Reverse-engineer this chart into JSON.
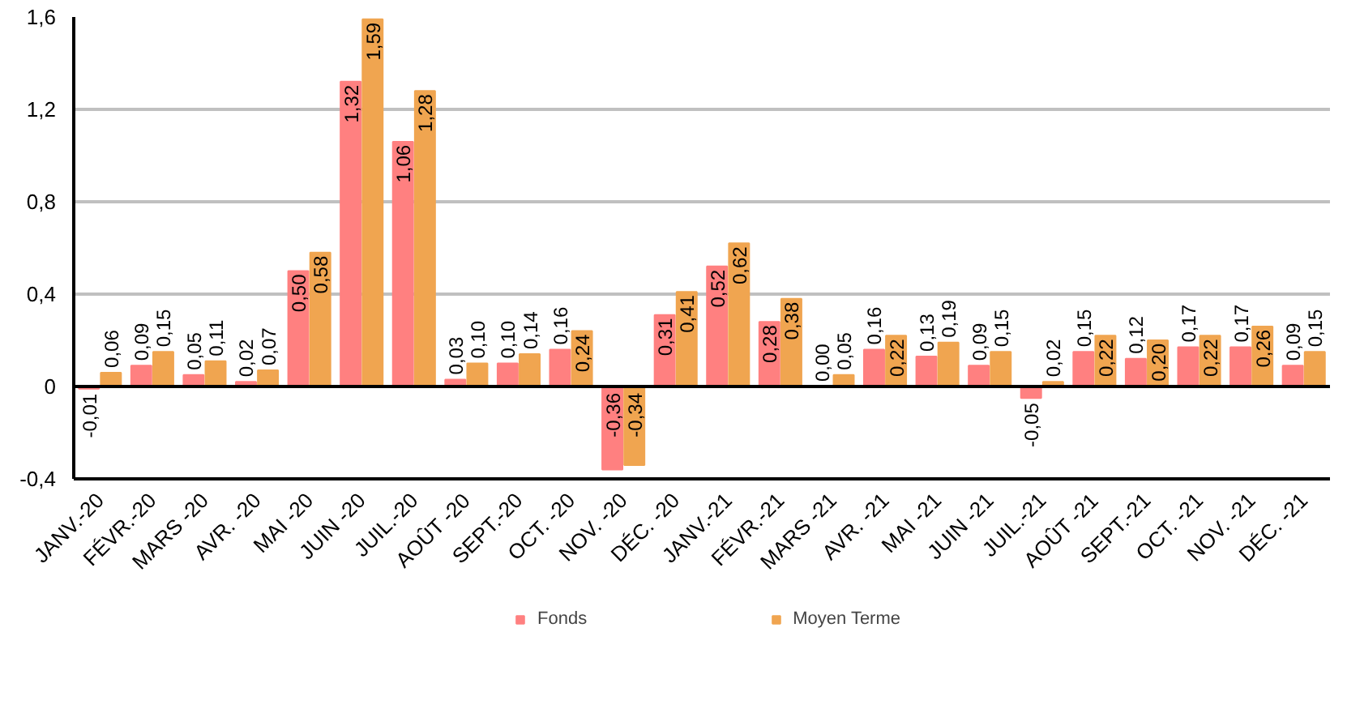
{
  "chart_data": {
    "type": "bar",
    "categories": [
      "JANV.-20",
      "FÉVR.-20",
      "MARS -20",
      "AVR. -20",
      "MAI -20",
      "JUIN -20",
      "JUIL.-20",
      "AOÛT -20",
      "SEPT.-20",
      "OCT. -20",
      "NOV. -20",
      "DÉC. -20",
      "JANV.-21",
      "FÉVR.-21",
      "MARS -21",
      "AVR. -21",
      "MAI -21",
      "JUIN -21",
      "JUIL.-21",
      "AOÛT -21",
      "SEPT.-21",
      "OCT. -21",
      "NOV. -21",
      "DÉC. -21"
    ],
    "series": [
      {
        "name": "Fonds",
        "color": "#ff8080",
        "values": [
          -0.01,
          0.09,
          0.05,
          0.02,
          0.5,
          1.32,
          1.06,
          0.03,
          0.1,
          0.16,
          -0.36,
          0.31,
          0.52,
          0.28,
          0.0,
          0.16,
          0.13,
          0.09,
          -0.05,
          0.15,
          0.12,
          0.17,
          0.17,
          0.09
        ],
        "value_labels": [
          "-0,01",
          "0,09",
          "0,05",
          "0,02",
          "0,50",
          "1,32",
          "1,06",
          "0,03",
          "0,10",
          "0,16",
          "-0,36",
          "0,31",
          "0,52",
          "0,28",
          "0,00",
          "0,16",
          "0,13",
          "0,09",
          "-0,05",
          "0,15",
          "0,12",
          "0,17",
          "0,17",
          "0,09"
        ]
      },
      {
        "name": "Moyen Terme",
        "color": "#f0a550",
        "values": [
          0.06,
          0.15,
          0.11,
          0.07,
          0.58,
          1.59,
          1.28,
          0.1,
          0.14,
          0.24,
          -0.34,
          0.41,
          0.62,
          0.38,
          0.05,
          0.22,
          0.19,
          0.15,
          0.02,
          0.22,
          0.2,
          0.22,
          0.26,
          0.15
        ],
        "value_labels": [
          "0,06",
          "0,15",
          "0,11",
          "0,07",
          "0,58",
          "1,59",
          "1,28",
          "0,10",
          "0,14",
          "0,24",
          "-0,34",
          "0,41",
          "0,62",
          "0,38",
          "0,05",
          "0,22",
          "0,19",
          "0,15",
          "0,02",
          "0,22",
          "0,20",
          "0,22",
          "0,26",
          "0,15"
        ]
      }
    ],
    "ylim": [
      -0.4,
      1.6
    ],
    "yticks": [
      {
        "value": -0.4,
        "label": "-0,4"
      },
      {
        "value": 0,
        "label": "0"
      },
      {
        "value": 0.4,
        "label": "0,4"
      },
      {
        "value": 0.8,
        "label": "0,8"
      },
      {
        "value": 1.2,
        "label": "1,2"
      },
      {
        "value": 1.6,
        "label": "1,6"
      }
    ],
    "ref_lines": [
      {
        "axis": "y",
        "value": 0,
        "color": "#000000"
      }
    ],
    "grid": "y",
    "legend": "bottom"
  }
}
